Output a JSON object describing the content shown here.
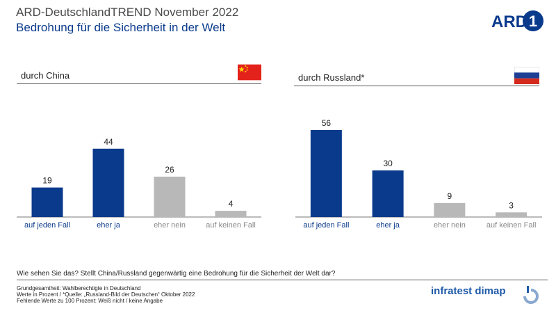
{
  "header": {
    "title": "ARD-DeutschlandTREND November 2022",
    "subtitle": "Bedrohung für die Sicherheit in der Welt",
    "logo_text": "ARD"
  },
  "colors": {
    "dark_blue": "#0a3a8c",
    "grey": "#b8b8b8",
    "china_red": "#e3231b",
    "china_yellow": "#ffde00",
    "russia_white": "#ffffff",
    "russia_blue": "#1c3f94",
    "russia_red": "#d52b1e"
  },
  "chart_data": [
    {
      "type": "bar",
      "title": "durch China",
      "flag": "china-flag",
      "categories": [
        "auf jeden Fall",
        "eher ja",
        "eher nein",
        "auf keinen Fall"
      ],
      "values": [
        19,
        44,
        26,
        4
      ],
      "bar_colors": [
        "dark_blue",
        "dark_blue",
        "grey",
        "grey"
      ],
      "ylim": [
        0,
        56
      ],
      "grid": false,
      "legend": "none"
    },
    {
      "type": "bar",
      "title": "durch Russland*",
      "flag": "russia-flag",
      "categories": [
        "auf jeden Fall",
        "eher ja",
        "eher nein",
        "auf keinen Fall"
      ],
      "values": [
        56,
        30,
        9,
        3
      ],
      "bar_colors": [
        "dark_blue",
        "dark_blue",
        "grey",
        "grey"
      ],
      "ylim": [
        0,
        56
      ],
      "grid": false,
      "legend": "none"
    }
  ],
  "question": "Wie sehen Sie das? Stellt China/Russland gegenwärtig eine Bedrohung für die Sicherheit der Welt dar?",
  "footer": {
    "line1": "Grundgesamtheit:  Wahlberechtigte in Deutschland",
    "line2": "Werte in Prozent / *Quelle: „Russland-Bild der Deutschen“ Oktober 2022",
    "line3": "Fehlende  Werte zu 100 Prozent: Weiß nicht / keine Angabe",
    "brand": "infratest dimap"
  }
}
